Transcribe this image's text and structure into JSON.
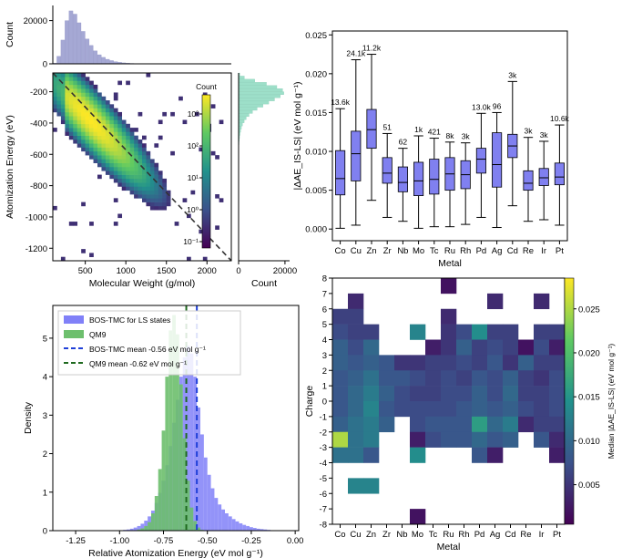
{
  "chart_data": [
    {
      "id": "histogram2d",
      "type": "heatmap",
      "xlabel": "Molecular Weight (g/mol)",
      "ylabel": "Atomization Energy (eV)",
      "xlim": [
        100,
        2300
      ],
      "ylim": [
        -1280,
        -80
      ],
      "xticks": [
        "500",
        "1000",
        "1500",
        "2000"
      ],
      "xtick_values": [
        500,
        1000,
        1500,
        2000
      ],
      "yticks": [
        "-200",
        "-400",
        "-600",
        "-800",
        "-1000",
        "-1200"
      ],
      "ytick_values": [
        -200,
        -400,
        -600,
        -800,
        -1000,
        -1200
      ],
      "colorbar": {
        "label": "Count",
        "scale": "log",
        "ticks": [
          "10³",
          "10²",
          "10¹",
          "10⁰",
          "10⁻¹"
        ],
        "tick_values": [
          3,
          2,
          1,
          0,
          -1
        ],
        "range": [
          -1.2,
          3.6
        ]
      },
      "trend_line": {
        "x": [
          100,
          2300
        ],
        "y": [
          -80,
          -1280
        ],
        "style": "dashed"
      },
      "colormap": [
        "#440154",
        "#3b528b",
        "#21918c",
        "#5ec962",
        "#fde725"
      ]
    },
    {
      "id": "top-marginal",
      "type": "bar",
      "ylabel": "Count",
      "yticks": [
        "0",
        "20000"
      ],
      "ytick_values": [
        0,
        20000
      ],
      "ylim": [
        0,
        27000
      ],
      "bin_start": 100,
      "bin_width": 50,
      "values": [
        300,
        3500,
        11000,
        20000,
        24500,
        23000,
        19000,
        15000,
        11500,
        8500,
        6000,
        4200,
        3000,
        2100,
        1500,
        1000,
        700,
        450,
        300,
        200,
        130,
        80,
        50,
        30,
        20,
        10,
        5,
        3
      ],
      "color": "#a5a8d4"
    },
    {
      "id": "right-marginal",
      "type": "bar",
      "orientation": "horizontal",
      "xlabel": "Count",
      "xticks": [
        "0",
        "20000"
      ],
      "xtick_values": [
        0,
        20000
      ],
      "xlim": [
        0,
        22000
      ],
      "bin_start": -80,
      "bin_width": -20,
      "values": [
        500,
        2500,
        7000,
        12000,
        16500,
        19000,
        19500,
        18000,
        15500,
        13000,
        10500,
        8000,
        6000,
        4500,
        3300,
        2400,
        1700,
        1200,
        850,
        600,
        400,
        280,
        190,
        130,
        90,
        60,
        40,
        25,
        15,
        10,
        6,
        4,
        3,
        2,
        2,
        1,
        1,
        1,
        1,
        1,
        1,
        1,
        1,
        1,
        1,
        1,
        1,
        1,
        1,
        1
      ],
      "color": "#9ddfc9"
    },
    {
      "id": "boxplot",
      "type": "bar",
      "subtype": "boxplot",
      "xlabel": "Metal",
      "ylabel": "|ΔAE_IS-LS| (eV mol g⁻¹)",
      "ylim": [
        -0.0015,
        0.0255
      ],
      "yticks": [
        "0.000",
        "0.005",
        "0.010",
        "0.015",
        "0.020",
        "0.025"
      ],
      "ytick_values": [
        0,
        0.005,
        0.01,
        0.015,
        0.02,
        0.025
      ],
      "categories": [
        "Co",
        "Cu",
        "Zn",
        "Zr",
        "Nb",
        "Mo",
        "Tc",
        "Ru",
        "Rh",
        "Pd",
        "Ag",
        "Cd",
        "Re",
        "Ir",
        "Pt"
      ],
      "box_color": "#8080f0",
      "series": [
        {
          "q1": 0.0044,
          "median": 0.0065,
          "q3": 0.0101,
          "lo": 0.0001,
          "hi": 0.0155,
          "label": "13.6k"
        },
        {
          "q1": 0.0062,
          "median": 0.0097,
          "q3": 0.0126,
          "lo": 0.0005,
          "hi": 0.0218,
          "label": "24.1k"
        },
        {
          "q1": 0.0104,
          "median": 0.0128,
          "q3": 0.0154,
          "lo": 0.0037,
          "hi": 0.0225,
          "label": "11.2k"
        },
        {
          "q1": 0.0059,
          "median": 0.0072,
          "q3": 0.0092,
          "lo": 0.0015,
          "hi": 0.0123,
          "label": "51"
        },
        {
          "q1": 0.0048,
          "median": 0.006,
          "q3": 0.008,
          "lo": 0.001,
          "hi": 0.0104,
          "label": "62"
        },
        {
          "q1": 0.0043,
          "median": 0.0062,
          "q3": 0.0086,
          "lo": 0.0001,
          "hi": 0.012,
          "label": "1k"
        },
        {
          "q1": 0.0045,
          "median": 0.0064,
          "q3": 0.009,
          "lo": 0.0003,
          "hi": 0.0117,
          "label": "421"
        },
        {
          "q1": 0.005,
          "median": 0.0071,
          "q3": 0.0092,
          "lo": 0.0003,
          "hi": 0.0112,
          "label": "8k"
        },
        {
          "q1": 0.0052,
          "median": 0.007,
          "q3": 0.0088,
          "lo": 0.0006,
          "hi": 0.0111,
          "label": "3k"
        },
        {
          "q1": 0.0072,
          "median": 0.009,
          "q3": 0.0104,
          "lo": 0.0015,
          "hi": 0.0149,
          "label": "13.0k"
        },
        {
          "q1": 0.0054,
          "median": 0.0083,
          "q3": 0.0124,
          "lo": 0.0002,
          "hi": 0.015,
          "label": "96"
        },
        {
          "q1": 0.0092,
          "median": 0.0107,
          "q3": 0.0122,
          "lo": 0.003,
          "hi": 0.019,
          "label": "3k"
        },
        {
          "q1": 0.005,
          "median": 0.0059,
          "q3": 0.0075,
          "lo": 0.001,
          "hi": 0.0118,
          "label": "3k"
        },
        {
          "q1": 0.0056,
          "median": 0.0066,
          "q3": 0.0078,
          "lo": 0.0012,
          "hi": 0.0113,
          "label": "3k"
        },
        {
          "q1": 0.0057,
          "median": 0.0067,
          "q3": 0.0085,
          "lo": 0.0005,
          "hi": 0.0134,
          "label": "10.6k"
        }
      ]
    },
    {
      "id": "density",
      "type": "bar",
      "subtype": "histogram",
      "xlabel": "Relative Atomization Energy (eV mol g⁻¹)",
      "ylabel": "Density",
      "xlim": [
        -1.38,
        0.02
      ],
      "ylim": [
        0,
        5.85
      ],
      "xticks": [
        "-1.25",
        "-1.00",
        "-0.75",
        "-0.50",
        "-0.25",
        "0.00"
      ],
      "xtick_values": [
        -1.25,
        -1.0,
        -0.75,
        -0.5,
        -0.25,
        0.0
      ],
      "yticks": [
        "0",
        "1",
        "2",
        "3",
        "4",
        "5"
      ],
      "ytick_values": [
        0,
        1,
        2,
        3,
        4,
        5
      ],
      "bin_start": -1.4,
      "bin_width": 0.02,
      "series": [
        {
          "name": "BOS-TMC for LS states",
          "color": "#8080f8",
          "values": [
            0,
            0,
            0,
            0,
            0,
            0,
            0,
            0,
            0,
            0,
            0,
            0,
            0,
            0,
            0,
            0,
            0,
            0,
            0,
            0,
            0.01,
            0.02,
            0.03,
            0.05,
            0.08,
            0.12,
            0.18,
            0.26,
            0.37,
            0.52,
            0.72,
            0.98,
            1.3,
            1.7,
            2.2,
            2.8,
            3.4,
            4.0,
            4.5,
            4.8,
            4.6,
            4.0,
            3.2,
            2.5,
            1.9,
            1.45,
            1.1,
            0.85,
            0.68,
            0.55,
            0.45,
            0.37,
            0.3,
            0.24,
            0.19,
            0.15,
            0.12,
            0.09,
            0.07,
            0.05,
            0.04,
            0.03,
            0.02,
            0.01,
            0.01,
            0.0,
            0.0,
            0.0,
            0.0,
            0.0
          ]
        },
        {
          "name": "QM9",
          "color": "#6dbf6d",
          "values": [
            0,
            0,
            0,
            0,
            0,
            0,
            0,
            0,
            0,
            0,
            0,
            0,
            0,
            0,
            0,
            0,
            0,
            0,
            0,
            0,
            0,
            0,
            0,
            0,
            0.01,
            0.03,
            0.06,
            0.12,
            0.22,
            0.45,
            0.9,
            1.6,
            2.6,
            4.0,
            5.2,
            5.6,
            5.1,
            3.8,
            2.4,
            1.3,
            0.6,
            0.25,
            0.08,
            0.02,
            0,
            0,
            0,
            0,
            0,
            0,
            0,
            0,
            0,
            0,
            0,
            0,
            0,
            0,
            0,
            0,
            0,
            0,
            0,
            0,
            0,
            0,
            0,
            0,
            0,
            0
          ]
        }
      ],
      "mean_lines": [
        {
          "name": "BOS-TMC mean -0.56 eV mol g⁻¹",
          "x": -0.56,
          "color": "#1f3fd8"
        },
        {
          "name": "QM9 mean -0.62 eV mol g⁻¹",
          "x": -0.62,
          "color": "#1f6a1f"
        }
      ]
    },
    {
      "id": "charge-heatmap",
      "type": "heatmap",
      "xlabel": "Metal",
      "ylabel": "Charge",
      "categories": [
        "Co",
        "Cu",
        "Zn",
        "Zr",
        "Nb",
        "Mo",
        "Tc",
        "Ru",
        "Rh",
        "Pd",
        "Ag",
        "Cd",
        "Re",
        "Ir",
        "Pt"
      ],
      "charges": [
        "7",
        "6",
        "5",
        "4",
        "3",
        "2",
        "1",
        "0",
        "-1",
        "-2",
        "-3",
        "-4",
        "-5",
        "-6",
        "-7",
        "-8"
      ],
      "ytick_labels": [
        "8",
        "7",
        "6",
        "5",
        "4",
        "3",
        "2",
        "1",
        "0",
        "-1",
        "-2",
        "-3",
        "-4",
        "-5",
        "-6",
        "-7",
        "-8"
      ],
      "colorbar": {
        "label": "Median |ΔAE_IS-LS| (eV mol g⁻¹)",
        "ticks": [
          "0.025",
          "0.020",
          "0.015",
          "0.010",
          "0.005"
        ],
        "tick_values": [
          0.025,
          0.02,
          0.015,
          0.01,
          0.005
        ],
        "range": [
          0.0005,
          0.0285
        ]
      },
      "grid": [
        [
          null,
          null,
          null,
          null,
          null,
          null,
          null,
          0.002,
          null,
          null,
          null,
          null,
          null,
          null,
          null
        ],
        [
          null,
          0.004,
          null,
          null,
          null,
          null,
          null,
          null,
          null,
          null,
          0.004,
          null,
          null,
          0.004,
          null
        ],
        [
          0.006,
          0.006,
          null,
          null,
          null,
          null,
          null,
          0.004,
          null,
          null,
          null,
          null,
          null,
          null,
          null
        ],
        [
          0.007,
          0.006,
          0.006,
          null,
          null,
          0.013,
          null,
          0.005,
          0.007,
          0.014,
          0.006,
          0.006,
          null,
          0.006,
          0.006
        ],
        [
          0.009,
          0.007,
          0.01,
          null,
          null,
          null,
          0.003,
          0.005,
          0.009,
          0.006,
          0.007,
          0.006,
          0.002,
          0.007,
          0.003
        ],
        [
          0.009,
          0.008,
          0.009,
          0.008,
          0.005,
          0.005,
          0.006,
          0.006,
          0.007,
          0.006,
          0.008,
          0.005,
          0.009,
          0.006,
          0.006
        ],
        [
          0.008,
          0.009,
          0.011,
          0.008,
          0.008,
          0.007,
          0.006,
          0.007,
          0.006,
          0.008,
          0.007,
          0.009,
          0.006,
          0.005,
          0.007
        ],
        [
          0.008,
          0.01,
          0.012,
          0.009,
          0.007,
          0.006,
          0.006,
          0.007,
          0.007,
          0.009,
          0.007,
          0.01,
          0.006,
          0.006,
          0.007
        ],
        [
          0.008,
          0.01,
          0.013,
          0.008,
          0.007,
          0.007,
          0.007,
          0.007,
          0.008,
          0.009,
          0.008,
          0.009,
          0.007,
          0.006,
          0.007
        ],
        [
          0.009,
          0.011,
          0.012,
          0.009,
          null,
          0.007,
          0.008,
          0.008,
          0.008,
          0.016,
          0.01,
          0.012,
          0.004,
          0.006,
          0.006
        ],
        [
          0.025,
          0.011,
          0.012,
          null,
          null,
          0.003,
          0.007,
          0.008,
          0.008,
          0.01,
          0.008,
          0.009,
          null,
          0.008,
          0.004
        ],
        [
          0.011,
          0.011,
          0.008,
          null,
          null,
          0.014,
          null,
          null,
          null,
          0.008,
          0.003,
          null,
          null,
          null,
          0.003
        ],
        [
          null,
          null,
          null,
          null,
          null,
          null,
          null,
          null,
          null,
          null,
          null,
          null,
          null,
          null,
          null
        ],
        [
          null,
          0.013,
          0.013,
          null,
          null,
          null,
          null,
          null,
          null,
          null,
          null,
          null,
          null,
          null,
          null
        ],
        [
          null,
          null,
          null,
          null,
          null,
          null,
          null,
          null,
          null,
          null,
          null,
          null,
          null,
          null,
          null
        ],
        [
          null,
          null,
          null,
          null,
          null,
          0.002,
          null,
          null,
          null,
          null,
          null,
          null,
          null,
          null,
          null
        ]
      ],
      "colormap": [
        "#440154",
        "#3b528b",
        "#21918c",
        "#5ec962",
        "#fde725"
      ]
    }
  ]
}
